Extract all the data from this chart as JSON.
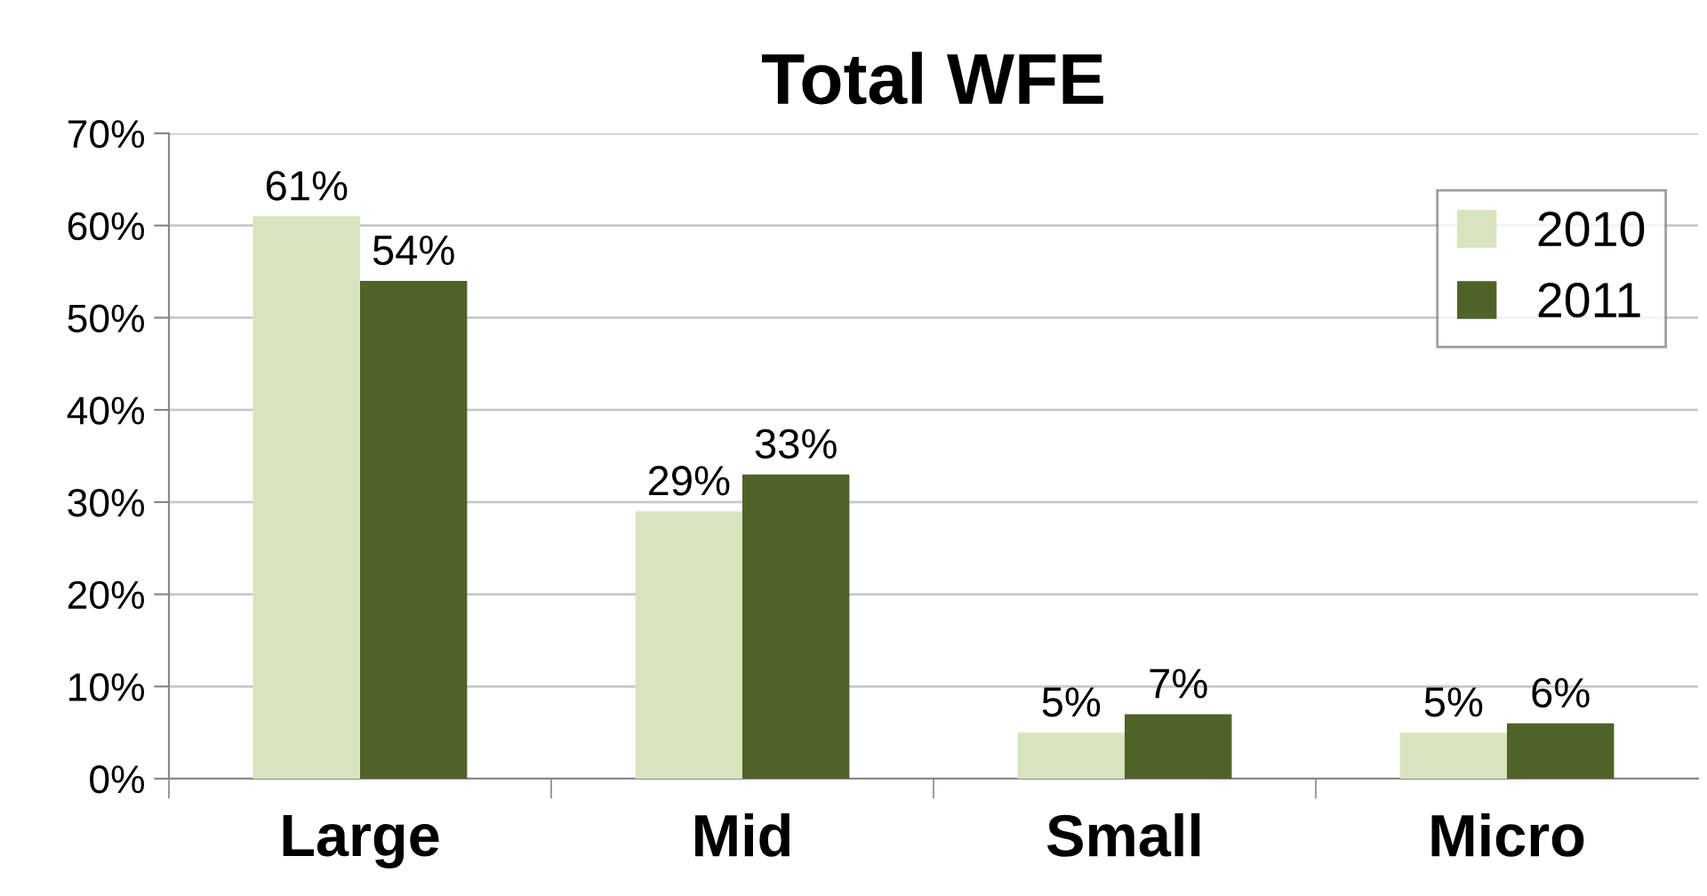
{
  "chart_data": {
    "type": "bar",
    "title": "Total WFE",
    "categories": [
      "Large",
      "Mid",
      "Small",
      "Micro"
    ],
    "series": [
      {
        "name": "2010",
        "color": "#d7e4bd",
        "values": [
          61,
          29,
          5,
          5
        ],
        "value_labels": [
          "61%",
          "29%",
          "5%",
          "5%"
        ]
      },
      {
        "name": "2011",
        "color": "#4f6228",
        "values": [
          54,
          33,
          7,
          6
        ],
        "value_labels": [
          "54%",
          "33%",
          "7%",
          "6%"
        ]
      }
    ],
    "ylim": [
      0,
      70
    ],
    "yticks": [
      {
        "value": 0,
        "label": "0%"
      },
      {
        "value": 10,
        "label": "10%"
      },
      {
        "value": 20,
        "label": "20%"
      },
      {
        "value": 30,
        "label": "30%"
      },
      {
        "value": 40,
        "label": "40%"
      },
      {
        "value": 50,
        "label": "50%"
      },
      {
        "value": 60,
        "label": "60%"
      },
      {
        "value": 70,
        "label": "70%"
      }
    ],
    "grid": "y",
    "legend": "top right"
  }
}
